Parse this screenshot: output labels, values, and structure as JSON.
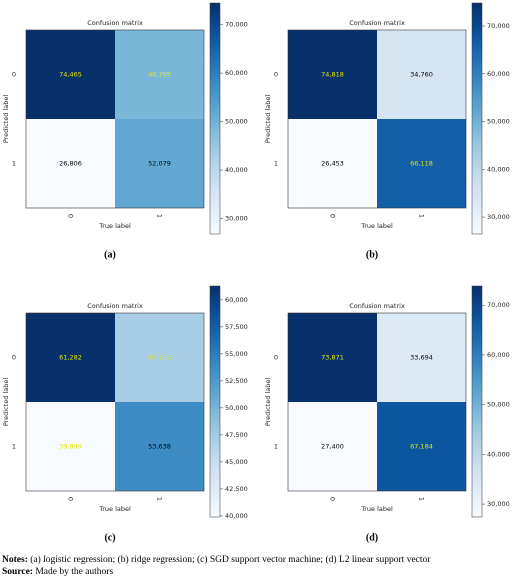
{
  "chart_data": [
    {
      "type": "heatmap",
      "title": "Confusion matrix",
      "xlabel": "True label",
      "ylabel": "Predicted label",
      "caption": "(a)",
      "x_categories": [
        "0",
        "1"
      ],
      "y_categories": [
        "0",
        "1"
      ],
      "values": [
        [
          74465,
          48799
        ],
        [
          26806,
          52079
        ]
      ],
      "value_labels": [
        [
          "74,465",
          "48,799"
        ],
        [
          "26,806",
          "52,079"
        ]
      ],
      "label_colors": [
        [
          "#e8e800",
          "#e8e800"
        ],
        [
          "#000000",
          "#000000"
        ]
      ],
      "colormap": "Blues",
      "clim": [
        26806,
        74465
      ],
      "cticks": [
        {
          "value": 30000,
          "label": "30,000"
        },
        {
          "value": 40000,
          "label": "40,000"
        },
        {
          "value": 50000,
          "label": "50,000"
        },
        {
          "value": 60000,
          "label": "60,000"
        },
        {
          "value": 70000,
          "label": "70,000"
        }
      ]
    },
    {
      "type": "heatmap",
      "title": "Confusion matrix",
      "xlabel": "True label",
      "ylabel": "Predicted label",
      "caption": "(b)",
      "x_categories": [
        "0",
        "1"
      ],
      "y_categories": [
        "0",
        "1"
      ],
      "values": [
        [
          74818,
          34760
        ],
        [
          26453,
          66118
        ]
      ],
      "value_labels": [
        [
          "74,818",
          "34,760"
        ],
        [
          "26,453",
          "66,118"
        ]
      ],
      "label_colors": [
        [
          "#e8e800",
          "#000000"
        ],
        [
          "#000000",
          "#e8e800"
        ]
      ],
      "colormap": "Blues",
      "clim": [
        26453,
        74818
      ],
      "cticks": [
        {
          "value": 30000,
          "label": "30,000"
        },
        {
          "value": 40000,
          "label": "40,000"
        },
        {
          "value": 50000,
          "label": "50,000"
        },
        {
          "value": 60000,
          "label": "60,000"
        },
        {
          "value": 70000,
          "label": "70,000"
        }
      ]
    },
    {
      "type": "heatmap",
      "title": "Confusion matrix",
      "xlabel": "True label",
      "ylabel": "Predicted label",
      "caption": "(c)",
      "x_categories": [
        "0",
        "1"
      ],
      "y_categories": [
        "0",
        "1"
      ],
      "values": [
        [
          61282,
          47240
        ],
        [
          39899,
          53638
        ]
      ],
      "value_labels": [
        [
          "61,282",
          "47,240"
        ],
        [
          "39,899",
          "53,638"
        ]
      ],
      "label_colors": [
        [
          "#e8e800",
          "#e8e800"
        ],
        [
          "#e8e800",
          "#000000"
        ]
      ],
      "colormap": "Blues",
      "clim": [
        39899,
        61282
      ],
      "cticks": [
        {
          "value": 40000,
          "label": "40,000"
        },
        {
          "value": 42500,
          "label": "42,500"
        },
        {
          "value": 45000,
          "label": "45,000"
        },
        {
          "value": 47500,
          "label": "47,500"
        },
        {
          "value": 50000,
          "label": "50,000"
        },
        {
          "value": 52500,
          "label": "52,500"
        },
        {
          "value": 55000,
          "label": "55,000"
        },
        {
          "value": 57500,
          "label": "57,500"
        },
        {
          "value": 60000,
          "label": "60,000"
        }
      ]
    },
    {
      "type": "heatmap",
      "title": "Confusion matrix",
      "xlabel": "True label",
      "ylabel": "Predicted label",
      "caption": "(d)",
      "x_categories": [
        "0",
        "1"
      ],
      "y_categories": [
        "0",
        "1"
      ],
      "values": [
        [
          73871,
          33694
        ],
        [
          27400,
          67184
        ]
      ],
      "value_labels": [
        [
          "73,871",
          "33,694"
        ],
        [
          "27,400",
          "67,184"
        ]
      ],
      "label_colors": [
        [
          "#e8e800",
          "#000000"
        ],
        [
          "#000000",
          "#e8e800"
        ]
      ],
      "colormap": "Blues",
      "clim": [
        27400,
        73871
      ],
      "cticks": [
        {
          "value": 30000,
          "label": "30,000"
        },
        {
          "value": 40000,
          "label": "40,000"
        },
        {
          "value": 50000,
          "label": "50,000"
        },
        {
          "value": 60000,
          "label": "60,000"
        },
        {
          "value": 70000,
          "label": "70,000"
        }
      ]
    }
  ],
  "notes": {
    "label": "Notes:",
    "text": "(a) logistic regression; (b) ridge regression; (c) SGD support vector machine; (d) L2 linear support vector"
  },
  "source": {
    "label": "Source:",
    "text": "Made by the authors"
  }
}
